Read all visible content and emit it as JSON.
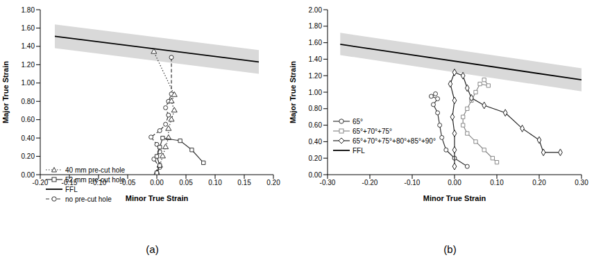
{
  "chart_data": [
    {
      "type": "line",
      "title": "(a)",
      "x_label": "Minor True Strain",
      "y_label": "Major True Strain",
      "xlim": [
        -0.2,
        0.2
      ],
      "xticks": [
        {
          "value": -0.2,
          "label": "-0.20"
        },
        {
          "value": -0.15,
          "label": "-0.15"
        },
        {
          "value": -0.1,
          "label": "-0.10"
        },
        {
          "value": -0.05,
          "label": "-0.05"
        },
        {
          "value": 0,
          "label": "0.00"
        },
        {
          "value": 0.05,
          "label": "0.05"
        },
        {
          "value": 0.1,
          "label": "0.10"
        },
        {
          "value": 0.15,
          "label": "0.15"
        },
        {
          "value": 0.2,
          "label": "0.20"
        }
      ],
      "ylim": [
        0,
        1.8
      ],
      "yticks": [
        {
          "value": 0,
          "label": "0.00"
        },
        {
          "value": 0.2,
          "label": "0.20"
        },
        {
          "value": 0.4,
          "label": "0.40"
        },
        {
          "value": 0.6,
          "label": "0.60"
        },
        {
          "value": 0.8,
          "label": "0.80"
        },
        {
          "value": 1,
          "label": "1.00"
        },
        {
          "value": 1.2,
          "label": "1.20"
        },
        {
          "value": 1.4,
          "label": "1.40"
        },
        {
          "value": 1.6,
          "label": "1.60"
        },
        {
          "value": 1.8,
          "label": "1.80"
        }
      ],
      "grid": false,
      "legend": "lower left",
      "band": {
        "color": "#d9d9d9",
        "x": [
          -0.175,
          0.175
        ],
        "lower": [
          1.38,
          1.1
        ],
        "upper": [
          1.64,
          1.36
        ]
      },
      "series": [
        {
          "name": "no pre-cut hole",
          "color": "#333333",
          "marker": "circle",
          "line_style": "dashed",
          "x": [
            0.0,
            0.005,
            -0.005,
            0.005,
            0.0,
            -0.01,
            0.005,
            0.015,
            0.02,
            0.015,
            0.02,
            0.025,
            0.025
          ],
          "values": [
            0.02,
            0.08,
            0.17,
            0.25,
            0.33,
            0.41,
            0.48,
            0.55,
            0.65,
            0.73,
            0.8,
            0.88,
            1.28
          ]
        },
        {
          "name": "40 mm pre-cut hole",
          "color": "#333333",
          "marker": "triangle",
          "line_style": "dotted",
          "x": [
            0.0,
            0.005,
            0.01,
            0.015,
            0.02,
            0.02,
            0.025,
            0.03,
            0.025,
            0.03,
            -0.005
          ],
          "values": [
            0.02,
            0.1,
            0.2,
            0.3,
            0.4,
            0.5,
            0.6,
            0.7,
            0.8,
            0.87,
            1.34
          ]
        },
        {
          "name": "52 mm pre-cut hole",
          "color": "#333333",
          "marker": "square",
          "line_style": "solid",
          "x": [
            0.0,
            0.005,
            0.0,
            0.005,
            0.01,
            0.04,
            0.06,
            0.08
          ],
          "values": [
            0.02,
            0.1,
            0.2,
            0.3,
            0.4,
            0.37,
            0.27,
            0.13
          ]
        },
        {
          "name": "FFL",
          "color": "#000000",
          "marker": "none",
          "line_style": "solid",
          "x": [
            -0.175,
            0.175
          ],
          "values": [
            1.51,
            1.23
          ]
        }
      ]
    },
    {
      "type": "line",
      "title": "(b)",
      "x_label": "Minor True Strain",
      "y_label": "Major True Strain",
      "xlim": [
        -0.3,
        0.3
      ],
      "xticks": [
        {
          "value": -0.3,
          "label": "-0.30"
        },
        {
          "value": -0.2,
          "label": "-0.20"
        },
        {
          "value": -0.1,
          "label": "-0.10"
        },
        {
          "value": 0,
          "label": "0.00"
        },
        {
          "value": 0.1,
          "label": "0.10"
        },
        {
          "value": 0.2,
          "label": "0.20"
        },
        {
          "value": 0.3,
          "label": "0.30"
        }
      ],
      "ylim": [
        0,
        2
      ],
      "yticks": [
        {
          "value": 0,
          "label": "0.00"
        },
        {
          "value": 0.2,
          "label": "0.20"
        },
        {
          "value": 0.4,
          "label": "0.40"
        },
        {
          "value": 0.6,
          "label": "0.60"
        },
        {
          "value": 0.8,
          "label": "0.80"
        },
        {
          "value": 1,
          "label": "1.00"
        },
        {
          "value": 1.2,
          "label": "1.20"
        },
        {
          "value": 1.4,
          "label": "1.40"
        },
        {
          "value": 1.6,
          "label": "1.60"
        },
        {
          "value": 1.8,
          "label": "1.80"
        },
        {
          "value": 2,
          "label": "2.00"
        }
      ],
      "grid": false,
      "legend": "left",
      "band": {
        "color": "#d9d9d9",
        "x": [
          -0.27,
          0.3
        ],
        "lower": [
          1.45,
          1.01
        ],
        "upper": [
          1.72,
          1.29
        ]
      },
      "series": [
        {
          "name": "65°",
          "color": "#333333",
          "marker": "circle",
          "line_style": "solid",
          "x": [
            0.03,
            0.0,
            -0.02,
            -0.03,
            -0.035,
            -0.04,
            -0.05,
            -0.04,
            -0.055,
            -0.045
          ],
          "values": [
            0.1,
            0.2,
            0.3,
            0.45,
            0.6,
            0.75,
            0.85,
            0.92,
            0.95,
            0.98
          ]
        },
        {
          "name": "65°+70°+75°",
          "color": "#888888",
          "marker": "square",
          "line_style": "solid",
          "x": [
            0.1,
            0.09,
            0.07,
            0.05,
            0.03,
            0.02,
            0.02,
            0.03,
            0.04,
            0.05,
            0.06,
            0.08,
            0.07
          ],
          "values": [
            0.15,
            0.2,
            0.3,
            0.4,
            0.5,
            0.6,
            0.7,
            0.8,
            0.9,
            1.0,
            1.1,
            1.08,
            1.15
          ]
        },
        {
          "name": "65°+70°+75°+80°+85°+90°",
          "color": "#222222",
          "marker": "diamond",
          "line_style": "solid",
          "x": [
            0.25,
            0.21,
            0.2,
            0.16,
            0.12,
            0.07,
            0.04,
            0.03,
            0.02,
            0.0,
            -0.01,
            0.0,
            -0.005,
            0.0,
            0.0,
            0.0
          ],
          "values": [
            0.27,
            0.27,
            0.42,
            0.56,
            0.75,
            0.84,
            0.93,
            1.05,
            1.2,
            1.24,
            1.1,
            0.9,
            0.7,
            0.5,
            0.3,
            0.1
          ]
        },
        {
          "name": "FFL",
          "color": "#000000",
          "marker": "none",
          "line_style": "solid",
          "x": [
            -0.27,
            0.3
          ],
          "values": [
            1.58,
            1.15
          ]
        }
      ]
    }
  ]
}
